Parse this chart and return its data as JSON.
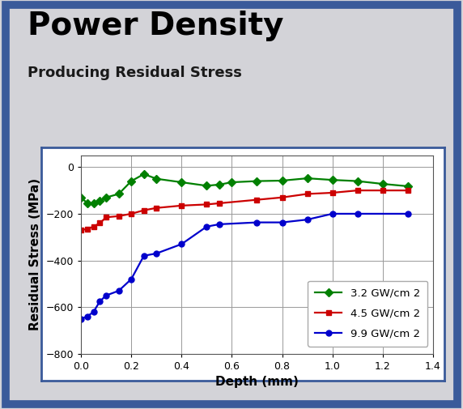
{
  "title": "Power Density",
  "subtitle": "Producing Residual Stress",
  "xlabel": "Depth (mm)",
  "ylabel": "Residual Stress (MPa)",
  "xlim": [
    0,
    1.4
  ],
  "ylim": [
    -800,
    50
  ],
  "yticks": [
    0,
    -200,
    -400,
    -600,
    -800
  ],
  "xticks": [
    0.0,
    0.2,
    0.4,
    0.6,
    0.8,
    1.0,
    1.2,
    1.4
  ],
  "bg_outer": "#d3d3d8",
  "bg_border": "#3a5a9a",
  "bg_plot_border": "#3a5a9a",
  "bg_plot": "#ffffff",
  "title_fontsize": 28,
  "subtitle_fontsize": 13,
  "series": [
    {
      "label": "3.2 GW/cm 2",
      "color": "#008000",
      "marker": "D",
      "markersize": 5,
      "x": [
        0.0,
        0.025,
        0.05,
        0.075,
        0.1,
        0.15,
        0.2,
        0.25,
        0.3,
        0.4,
        0.5,
        0.55,
        0.6,
        0.7,
        0.8,
        0.9,
        1.0,
        1.1,
        1.2,
        1.3
      ],
      "y": [
        -130,
        -155,
        -155,
        -145,
        -130,
        -115,
        -60,
        -30,
        -50,
        -65,
        -80,
        -75,
        -65,
        -60,
        -58,
        -48,
        -55,
        -60,
        -72,
        -82
      ]
    },
    {
      "label": "4.5 GW/cm 2",
      "color": "#cc0000",
      "marker": "s",
      "markersize": 5,
      "x": [
        0.0,
        0.025,
        0.05,
        0.075,
        0.1,
        0.15,
        0.2,
        0.25,
        0.3,
        0.4,
        0.5,
        0.55,
        0.7,
        0.8,
        0.9,
        1.0,
        1.1,
        1.2,
        1.3
      ],
      "y": [
        -270,
        -265,
        -255,
        -240,
        -215,
        -210,
        -200,
        -185,
        -175,
        -165,
        -160,
        -155,
        -140,
        -130,
        -115,
        -110,
        -100,
        -100,
        -100
      ]
    },
    {
      "label": "9.9 GW/cm 2",
      "color": "#0000cc",
      "marker": "o",
      "markersize": 5,
      "x": [
        0.0,
        0.025,
        0.05,
        0.075,
        0.1,
        0.15,
        0.2,
        0.25,
        0.3,
        0.4,
        0.5,
        0.55,
        0.7,
        0.8,
        0.9,
        1.0,
        1.1,
        1.3
      ],
      "y": [
        -650,
        -640,
        -620,
        -575,
        -550,
        -530,
        -480,
        -380,
        -370,
        -330,
        -255,
        -245,
        -237,
        -237,
        -225,
        -200,
        -200,
        -200
      ]
    }
  ]
}
